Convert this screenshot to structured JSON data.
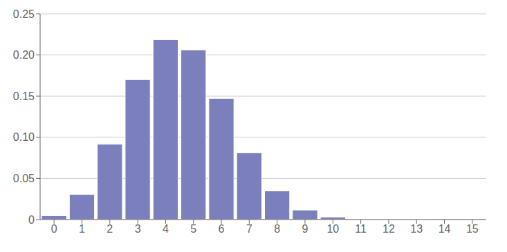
{
  "chart_data": {
    "type": "bar",
    "categories": [
      0,
      1,
      2,
      3,
      4,
      5,
      6,
      7,
      8,
      9,
      10,
      11,
      12,
      13,
      14,
      15
    ],
    "values": [
      0.0047,
      0.03052,
      0.09156,
      0.17004,
      0.21862,
      0.20613,
      0.14726,
      0.08113,
      0.03478,
      0.01161,
      0.00298,
      0.00057,
      7e-05,
      1e-05,
      0.0,
      0.0
    ],
    "color": "#7b7fbb",
    "xlim": [
      -0.5,
      15.5
    ],
    "xticks": [
      0,
      1,
      2,
      3,
      4,
      5,
      6,
      7,
      8,
      9,
      10,
      11,
      12,
      13,
      14,
      15
    ],
    "ylim": [
      0,
      0.25
    ],
    "yticks": [
      0,
      0.05,
      {
        "value": 0.1,
        "label": "0.10"
      },
      0.15,
      {
        "value": 0.2,
        "label": "0.20"
      },
      0.25
    ],
    "grid": true
  }
}
